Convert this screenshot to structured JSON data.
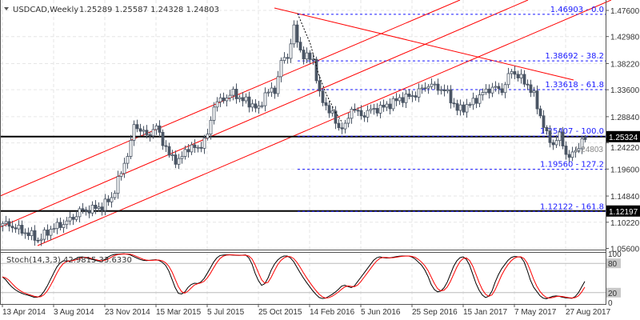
{
  "header": {
    "symbol_timeframe": "USDCAD,Weekly",
    "ohlc": "1.25289 1.25587 1.24328 1.24803",
    "menu_icon": "triangle-down-icon"
  },
  "colors": {
    "bull_fill": "#ffffff",
    "bear_fill": "#4a5564",
    "candle_outline": "#4a5564",
    "channel": "#ff0000",
    "fib": "#1a1aff",
    "level_line": "#000000",
    "stoch_main": "#000000",
    "stoch_signal": "#ff0000",
    "grid": "#e6e6e6"
  },
  "chart_data": [
    {
      "type": "candlestick",
      "title": "USDCAD,Weekly",
      "ylim": [
        1.056,
        1.476
      ],
      "y_ticks": [
        "1.47600",
        "1.42980",
        "1.38220",
        "1.33600",
        "1.28840",
        "1.24220",
        "1.19600",
        "1.14840",
        "1.10220",
        "1.05600"
      ],
      "x_ticks": [
        "13 Apr 2014",
        "3 Aug 2014",
        "23 Nov 2014",
        "15 Mar 2015",
        "5 Jul 2015",
        "25 Oct 2015",
        "14 Feb 2016",
        "5 Jun 2016",
        "25 Sep 2016",
        "15 Jan 2017",
        "7 May 2017",
        "27 Aug 2017"
      ],
      "grid": true,
      "start_week": "2014-04-13",
      "close_path": [
        [
          "2014-04-13",
          1.1
        ],
        [
          "2014-05-04",
          1.095
        ],
        [
          "2014-06-22",
          1.076
        ],
        [
          "2014-06-29",
          1.07
        ],
        [
          "2014-07-27",
          1.09
        ],
        [
          "2014-08-24",
          1.1
        ],
        [
          "2014-09-14",
          1.11
        ],
        [
          "2014-09-28",
          1.122
        ],
        [
          "2014-10-12",
          1.123
        ],
        [
          "2014-11-16",
          1.13
        ],
        [
          "2014-12-07",
          1.145
        ],
        [
          "2014-12-28",
          1.19
        ],
        [
          "2015-01-18",
          1.24
        ],
        [
          "2015-01-25",
          1.275
        ],
        [
          "2015-02-22",
          1.255
        ],
        [
          "2015-03-15",
          1.27
        ],
        [
          "2015-04-12",
          1.22
        ],
        [
          "2015-05-03",
          1.21
        ],
        [
          "2015-05-24",
          1.235
        ],
        [
          "2015-06-14",
          1.232
        ],
        [
          "2015-07-05",
          1.255
        ],
        [
          "2015-07-19",
          1.31
        ],
        [
          "2015-08-09",
          1.32
        ],
        [
          "2015-08-30",
          1.33
        ],
        [
          "2015-09-20",
          1.318
        ],
        [
          "2015-10-11",
          1.31
        ],
        [
          "2015-10-25",
          1.3
        ],
        [
          "2015-11-08",
          1.33
        ],
        [
          "2015-11-29",
          1.335
        ],
        [
          "2015-12-13",
          1.385
        ],
        [
          "2015-12-27",
          1.395
        ],
        [
          "2016-01-10",
          1.445
        ],
        [
          "2016-01-17",
          1.42
        ],
        [
          "2016-01-31",
          1.395
        ],
        [
          "2016-02-21",
          1.39
        ],
        [
          "2016-03-06",
          1.325
        ],
        [
          "2016-03-27",
          1.3
        ],
        [
          "2016-04-17",
          1.27
        ],
        [
          "2016-05-01",
          1.27
        ],
        [
          "2016-05-15",
          1.305
        ],
        [
          "2016-06-05",
          1.29
        ],
        [
          "2016-06-26",
          1.3
        ],
        [
          "2016-07-24",
          1.305
        ],
        [
          "2016-08-28",
          1.32
        ],
        [
          "2016-09-25",
          1.325
        ],
        [
          "2016-10-30",
          1.345
        ],
        [
          "2016-11-20",
          1.34
        ],
        [
          "2016-12-11",
          1.33
        ],
        [
          "2017-01-01",
          1.3
        ],
        [
          "2017-01-29",
          1.31
        ],
        [
          "2017-02-26",
          1.33
        ],
        [
          "2017-03-19",
          1.34
        ],
        [
          "2017-04-09",
          1.335
        ],
        [
          "2017-04-30",
          1.37
        ],
        [
          "2017-05-14",
          1.36
        ],
        [
          "2017-06-04",
          1.345
        ],
        [
          "2017-06-18",
          1.325
        ],
        [
          "2017-07-02",
          1.29
        ],
        [
          "2017-07-16",
          1.255
        ],
        [
          "2017-07-30",
          1.24
        ],
        [
          "2017-08-13",
          1.255
        ],
        [
          "2017-08-27",
          1.225
        ],
        [
          "2017-09-03",
          1.215
        ],
        [
          "2017-09-17",
          1.23
        ],
        [
          "2017-10-01",
          1.245
        ],
        [
          "2017-10-08",
          1.24803
        ]
      ],
      "last_candle": {
        "open": 1.25289,
        "high": 1.25587,
        "low": 1.24328,
        "close": 1.24803
      },
      "horizontal_levels": [
        {
          "price": 1.25324,
          "label": "1.25324"
        },
        {
          "price": 1.12197,
          "label": "1.12197"
        }
      ],
      "bid_label": "1.24803",
      "fibonacci": [
        {
          "price": 1.46903,
          "label": "1.46903 - 0.0"
        },
        {
          "price": 1.38692,
          "label": "1.38692 - 38.2"
        },
        {
          "price": 1.33618,
          "label": "1.33618 - 61.8"
        },
        {
          "price": 1.25407,
          "label": "1.25407 - 100.0"
        },
        {
          "price": 1.1956,
          "label": "1.19560 - 127.2"
        },
        {
          "price": 1.12122,
          "label": "1.12122 - 161.8"
        }
      ]
    },
    {
      "type": "line",
      "title": "Stoch(14,3,3) 42.9815 33.6330",
      "ylim": [
        0,
        100
      ],
      "levels": [
        "100",
        "80",
        "20",
        "0"
      ],
      "series": [
        {
          "points": [
            [
              "2014-04-13",
              55
            ],
            [
              "2014-05-04",
              30
            ],
            [
              "2014-05-25",
              18
            ],
            [
              "2014-06-08",
              15
            ],
            [
              "2014-06-29",
              8
            ],
            [
              "2014-07-13",
              20
            ],
            [
              "2014-08-03",
              60
            ],
            [
              "2014-08-17",
              85
            ],
            [
              "2014-09-14",
              85
            ],
            [
              "2014-09-28",
              95
            ],
            [
              "2014-10-26",
              88
            ],
            [
              "2014-11-16",
              83
            ],
            [
              "2014-12-07",
              98
            ],
            [
              "2015-01-11",
              100
            ],
            [
              "2015-02-15",
              85
            ],
            [
              "2015-03-22",
              88
            ],
            [
              "2015-04-12",
              70
            ],
            [
              "2015-04-26",
              25
            ],
            [
              "2015-05-10",
              12
            ],
            [
              "2015-05-31",
              40
            ],
            [
              "2015-06-21",
              38
            ],
            [
              "2015-07-12",
              70
            ],
            [
              "2015-07-26",
              95
            ],
            [
              "2015-08-16",
              98
            ],
            [
              "2015-09-13",
              96
            ],
            [
              "2015-10-04",
              98
            ],
            [
              "2015-10-25",
              40
            ],
            [
              "2015-11-08",
              30
            ],
            [
              "2015-11-22",
              70
            ],
            [
              "2015-12-13",
              95
            ],
            [
              "2016-01-03",
              95
            ],
            [
              "2016-01-31",
              50
            ],
            [
              "2016-02-28",
              15
            ],
            [
              "2016-03-13",
              5
            ],
            [
              "2016-04-10",
              20
            ],
            [
              "2016-05-01",
              40
            ],
            [
              "2016-05-15",
              25
            ],
            [
              "2016-06-12",
              60
            ],
            [
              "2016-07-10",
              95
            ],
            [
              "2016-07-31",
              90
            ],
            [
              "2016-08-28",
              95
            ],
            [
              "2016-09-25",
              95
            ],
            [
              "2016-10-23",
              70
            ],
            [
              "2016-11-13",
              20
            ],
            [
              "2016-12-04",
              25
            ],
            [
              "2017-01-01",
              90
            ],
            [
              "2017-01-22",
              95
            ],
            [
              "2017-02-19",
              20
            ],
            [
              "2017-03-12",
              5
            ],
            [
              "2017-04-02",
              60
            ],
            [
              "2017-04-30",
              95
            ],
            [
              "2017-05-28",
              92
            ],
            [
              "2017-06-11",
              40
            ],
            [
              "2017-07-09",
              5
            ],
            [
              "2017-08-06",
              15
            ],
            [
              "2017-08-20",
              10
            ],
            [
              "2017-09-17",
              8
            ],
            [
              "2017-10-08",
              42.9815
            ]
          ]
        }
      ]
    }
  ]
}
